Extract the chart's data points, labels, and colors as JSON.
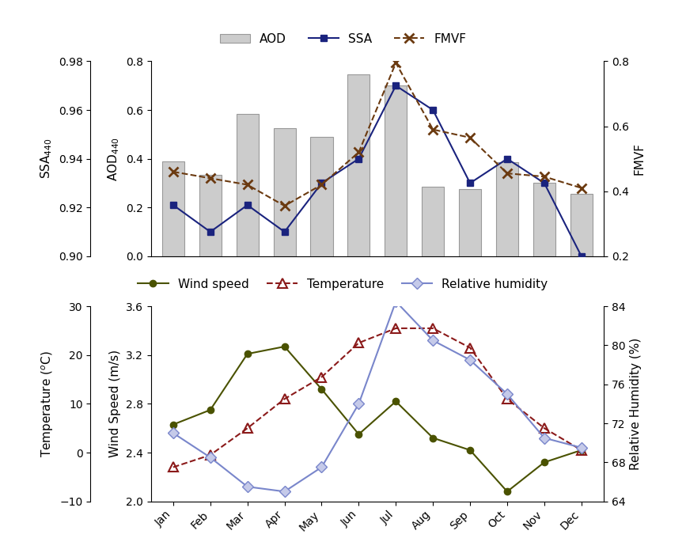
{
  "months": [
    "Jan",
    "Feb",
    "Mar",
    "Apr",
    "May",
    "Jun",
    "Jul",
    "Aug",
    "Sep",
    "Oct",
    "Nov",
    "Dec"
  ],
  "AOD": [
    0.39,
    0.335,
    0.585,
    0.525,
    0.49,
    0.745,
    0.7,
    0.285,
    0.275,
    0.385,
    0.3,
    0.255
  ],
  "SSA": [
    0.921,
    0.91,
    0.921,
    0.91,
    0.93,
    0.94,
    0.97,
    0.96,
    0.93,
    0.94,
    0.93,
    0.9
  ],
  "FMVF": [
    0.46,
    0.44,
    0.42,
    0.355,
    0.42,
    0.52,
    0.795,
    0.59,
    0.565,
    0.455,
    0.445,
    0.41
  ],
  "wind_speed": [
    2.63,
    2.75,
    3.21,
    3.27,
    2.92,
    2.55,
    2.82,
    2.52,
    2.42,
    2.08,
    2.32,
    2.42
  ],
  "temperature": [
    -3.0,
    -0.5,
    5.0,
    11.0,
    15.5,
    22.5,
    25.5,
    25.5,
    21.5,
    11.0,
    5.0,
    0.5
  ],
  "rel_humidity": [
    71.0,
    68.5,
    65.5,
    65.0,
    67.5,
    74.0,
    84.5,
    80.5,
    78.5,
    75.0,
    70.5,
    69.5
  ],
  "AOD_ylim": [
    0,
    0.8
  ],
  "AOD_yticks": [
    0,
    0.2,
    0.4,
    0.6,
    0.8
  ],
  "SSA_ylim": [
    0.9,
    0.98
  ],
  "SSA_yticks": [
    0.9,
    0.92,
    0.94,
    0.96,
    0.98
  ],
  "FMVF_ylim": [
    0.2,
    0.8
  ],
  "FMVF_yticks": [
    0.2,
    0.4,
    0.6,
    0.8
  ],
  "wind_ylim": [
    2.0,
    3.6
  ],
  "wind_yticks": [
    2.0,
    2.4,
    2.8,
    3.2,
    3.6
  ],
  "temp_ylim": [
    -10,
    30
  ],
  "temp_yticks": [
    -10,
    0,
    10,
    20,
    30
  ],
  "rh_ylim": [
    64,
    84
  ],
  "rh_yticks": [
    64,
    68,
    72,
    76,
    80,
    84
  ],
  "bar_color": "#cccccc",
  "bar_edgecolor": "#999999",
  "SSA_color": "#1a237e",
  "FMVF_color": "#6b3a10",
  "wind_color": "#4a5200",
  "temp_color": "#8b1a1a",
  "rh_color": "#7986cb",
  "rh_face_color": "#c5cae9"
}
